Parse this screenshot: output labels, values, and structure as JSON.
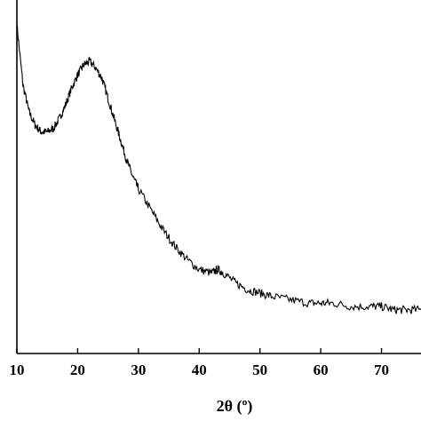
{
  "chart_data": {
    "type": "line",
    "title": "",
    "xlabel": "2θ (º)",
    "ylabel": "",
    "xlim": [
      10,
      76.5
    ],
    "ylim": [
      0,
      1
    ],
    "x_ticks": [
      10,
      20,
      30,
      40,
      50,
      60,
      70
    ],
    "x_tick_labels": [
      "10",
      "20",
      "30",
      "40",
      "50",
      "60",
      "70"
    ],
    "grid": false,
    "legend": "none",
    "line_color": "#000000",
    "series": [
      {
        "x": [
          10,
          11,
          12,
          13,
          14,
          15,
          16,
          17,
          18,
          19,
          20,
          21,
          22,
          23,
          24,
          25,
          26,
          27,
          28,
          29,
          30,
          32,
          34,
          36,
          38,
          40,
          42,
          43,
          44,
          46,
          48,
          50,
          52,
          55,
          58,
          60,
          62,
          65,
          68,
          70,
          72,
          74,
          76.5
        ],
        "y": [
          0.98,
          0.8,
          0.72,
          0.68,
          0.66,
          0.66,
          0.67,
          0.7,
          0.74,
          0.79,
          0.83,
          0.86,
          0.87,
          0.85,
          0.82,
          0.76,
          0.7,
          0.64,
          0.58,
          0.53,
          0.49,
          0.43,
          0.37,
          0.32,
          0.28,
          0.25,
          0.24,
          0.25,
          0.24,
          0.21,
          0.19,
          0.18,
          0.17,
          0.16,
          0.15,
          0.15,
          0.15,
          0.14,
          0.14,
          0.14,
          0.13,
          0.13,
          0.13
        ]
      }
    ]
  }
}
